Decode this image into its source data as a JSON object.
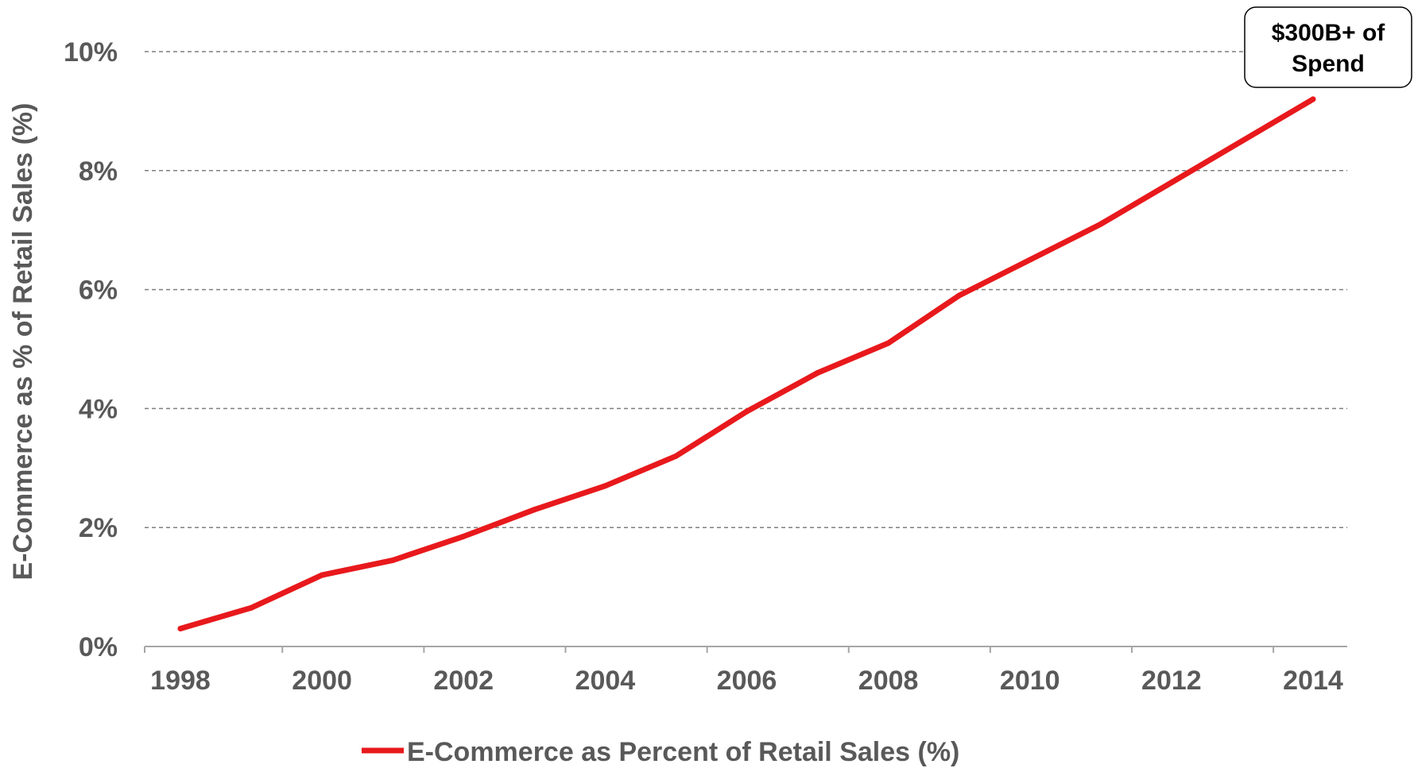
{
  "chart_data": {
    "type": "line",
    "x": [
      1998,
      1999,
      2000,
      2001,
      2002,
      2003,
      2004,
      2005,
      2006,
      2007,
      2008,
      2009,
      2010,
      2011,
      2012,
      2013,
      2014
    ],
    "series": [
      {
        "name": "E-Commerce as Percent of Retail Sales (%)",
        "color": "#e8191c",
        "values": [
          0.3,
          0.65,
          1.2,
          1.45,
          1.85,
          2.3,
          2.7,
          3.2,
          3.95,
          4.6,
          5.1,
          5.9,
          6.5,
          7.1,
          7.8,
          8.5,
          9.2
        ]
      }
    ],
    "ylabel": "E-Commerce as % of Retail Sales (%)",
    "xlabel": "",
    "ylim": [
      0,
      10
    ],
    "xlim": [
      1998,
      2014
    ],
    "y_ticks": [
      0,
      2,
      4,
      6,
      8,
      10
    ],
    "y_tick_labels": [
      "0%",
      "2%",
      "4%",
      "6%",
      "8%",
      "10%"
    ],
    "x_ticks": [
      1998,
      2000,
      2002,
      2004,
      2006,
      2008,
      2010,
      2012,
      2014
    ],
    "x_tick_labels": [
      "1998",
      "2000",
      "2002",
      "2004",
      "2006",
      "2008",
      "2010",
      "2012",
      "2014"
    ],
    "grid": "horizontal dashed",
    "legend": "bottom-center",
    "annotation": {
      "lines": [
        "$300B+ of",
        "Spend"
      ],
      "anchor_x": 2014,
      "anchor_y": 9.2
    }
  },
  "colors": {
    "line": "#e8191c",
    "text": "#595959",
    "grid": "#7f7f7f",
    "axis": "#a6a6a6"
  }
}
